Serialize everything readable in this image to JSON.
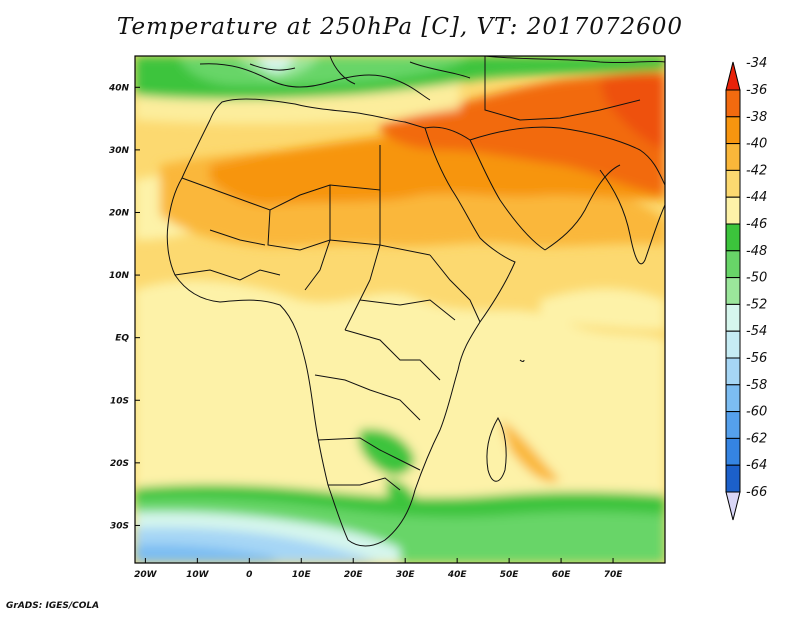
{
  "title": "Temperature at 250hPa [C], VT: 2017072600",
  "credit": "GrADS: IGES/COLA",
  "map": {
    "lon_range": [
      -22,
      80
    ],
    "lat_range": [
      -36,
      45
    ],
    "lon_ticks": [
      {
        "value": -20,
        "label": "20W"
      },
      {
        "value": -10,
        "label": "10W"
      },
      {
        "value": 0,
        "label": "0"
      },
      {
        "value": 10,
        "label": "10E"
      },
      {
        "value": 20,
        "label": "20E"
      },
      {
        "value": 30,
        "label": "30E"
      },
      {
        "value": 40,
        "label": "40E"
      },
      {
        "value": 50,
        "label": "50E"
      },
      {
        "value": 60,
        "label": "60E"
      },
      {
        "value": 70,
        "label": "70E"
      }
    ],
    "lat_ticks": [
      {
        "value": 40,
        "label": "40N"
      },
      {
        "value": 30,
        "label": "30N"
      },
      {
        "value": 20,
        "label": "20N"
      },
      {
        "value": 10,
        "label": "10N"
      },
      {
        "value": 0,
        "label": "EQ"
      },
      {
        "value": -10,
        "label": "10S"
      },
      {
        "value": -20,
        "label": "20S"
      },
      {
        "value": -30,
        "label": "30S"
      }
    ]
  },
  "colorbar": {
    "levels": [
      "-34",
      "-36",
      "-38",
      "-40",
      "-42",
      "-44",
      "-46",
      "-48",
      "-50",
      "-52",
      "-54",
      "-56",
      "-58",
      "-60",
      "-62",
      "-64",
      "-66"
    ],
    "colors": [
      "#e8220a",
      "#f26a0f",
      "#f7950f",
      "#fab73a",
      "#fcd970",
      "#fdf2a8",
      "#3cc43c",
      "#68d568",
      "#9be69b",
      "#d6f6ed",
      "#c6ecf4",
      "#a6d6f5",
      "#7cbdf2",
      "#55a0ec",
      "#3584e2",
      "#1c60ca",
      "#0f2f8c"
    ]
  }
}
